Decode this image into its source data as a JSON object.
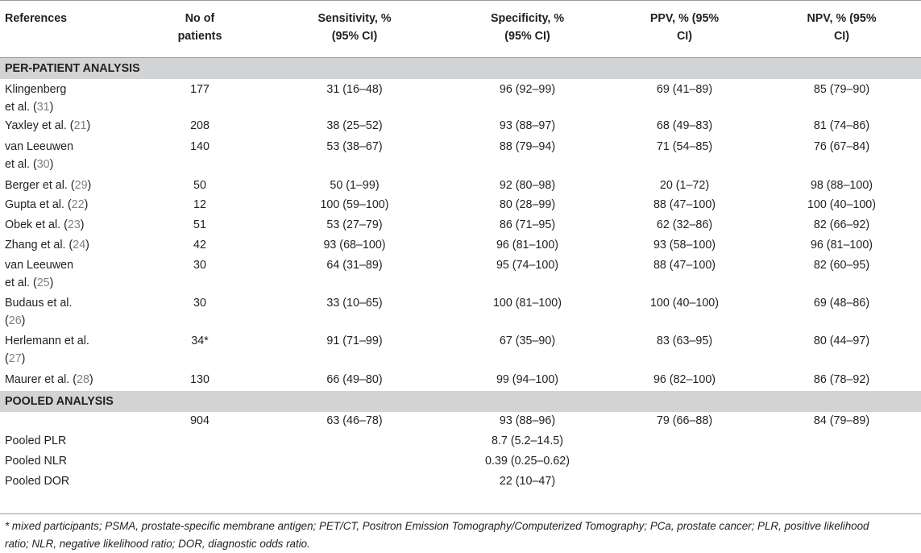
{
  "headers": {
    "references": "References",
    "patients_1": "No of",
    "patients_2": "patients",
    "sens_1": "Sensitivity, %",
    "sens_2": "(95% CI)",
    "spec_1": "Specificity, %",
    "spec_2": "(95% CI)",
    "ppv_1": "PPV, % (95%",
    "ppv_2": "CI)",
    "npv_1": "NPV, % (95%",
    "npv_2": "CI)"
  },
  "sections": {
    "per_patient": "PER-PATIENT ANALYSIS",
    "pooled": "POOLED ANALYSIS"
  },
  "rows": [
    {
      "ref_a": "Klingenberg",
      "ref_b": "et al. (",
      "cite": "31",
      "ref_c": ")",
      "n": "177",
      "sens": "31 (16–48)",
      "spec": "96 (92–99)",
      "ppv": "69 (41–89)",
      "npv": "85 (79–90)"
    },
    {
      "ref_a": "Yaxley et al. (",
      "cite": "21",
      "ref_c": ")",
      "n": "208",
      "sens": "38 (25–52)",
      "spec": "93 (88–97)",
      "ppv": "68 (49–83)",
      "npv": "81 (74–86)"
    },
    {
      "ref_a": "van Leeuwen",
      "ref_b": "et al. (",
      "cite": "30",
      "ref_c": ")",
      "n": "140",
      "sens": "53 (38–67)",
      "spec": "88 (79–94)",
      "ppv": "71 (54–85)",
      "npv": "76 (67–84)"
    },
    {
      "ref_a": "Berger et al. (",
      "cite": "29",
      "ref_c": ")",
      "n": "50",
      "sens": "50 (1–99)",
      "spec": "92 (80–98)",
      "ppv": "20 (1–72)",
      "npv": "98 (88–100)"
    },
    {
      "ref_a": "Gupta et al. (",
      "cite": "22",
      "ref_c": ")",
      "n": "12",
      "sens": "100 (59–100)",
      "spec": "80 (28–99)",
      "ppv": "88 (47–100)",
      "npv": "100 (40–100)"
    },
    {
      "ref_a": "Obek et al. (",
      "cite": "23",
      "ref_c": ")",
      "n": "51",
      "sens": "53 (27–79)",
      "spec": "86 (71–95)",
      "ppv": "62 (32–86)",
      "npv": "82 (66–92)"
    },
    {
      "ref_a": "Zhang et al. (",
      "cite": "24",
      "ref_c": ")",
      "n": "42",
      "sens": "93 (68–100)",
      "spec": "96 (81–100)",
      "ppv": "93 (58–100)",
      "npv": "96 (81–100)"
    },
    {
      "ref_a": "van Leeuwen",
      "ref_b": "et al. (",
      "cite": "25",
      "ref_c": ")",
      "n": "30",
      "sens": "64 (31–89)",
      "spec": "95 (74–100)",
      "ppv": "88 (47–100)",
      "npv": "82 (60–95)"
    },
    {
      "ref_a": "Budaus et al.",
      "ref_b": "(",
      "cite": "26",
      "ref_c": ")",
      "n": "30",
      "sens": "33 (10–65)",
      "spec": "100 (81–100)",
      "ppv": "100 (40–100)",
      "npv": "69 (48–86)"
    },
    {
      "ref_a": "Herlemann et al.",
      "ref_b": "(",
      "cite": "27",
      "ref_c": ")",
      "n": "34*",
      "sens": "91 (71–99)",
      "spec": "67 (35–90)",
      "ppv": "83 (63–95)",
      "npv": "80 (44–97)"
    },
    {
      "ref_a": "Maurer et al. (",
      "cite": "28",
      "ref_c": ")",
      "n": "130",
      "sens": "66 (49–80)",
      "spec": "99 (94–100)",
      "ppv": "96 (82–100)",
      "npv": "86 (78–92)"
    }
  ],
  "pooled": {
    "n": "904",
    "sens": "63 (46–78)",
    "spec": "93 (88–96)",
    "ppv": "79 (66–88)",
    "npv": "84 (79–89)",
    "plr_label": "Pooled PLR",
    "plr": "8.7 (5.2–14.5)",
    "nlr_label": "Pooled NLR",
    "nlr": "0.39 (0.25–0.62)",
    "dor_label": "Pooled DOR",
    "dor": "22 (10–47)"
  },
  "footnote": {
    "line1": "* mixed participants; PSMA, prostate-specific membrane antigen; PET/CT, Positron Emission Tomography/Computerized Tomography; PCa, prostate cancer; PLR, positive likelihood",
    "line2": "ratio; NLR, negative likelihood ratio; DOR, diagnostic odds ratio."
  }
}
